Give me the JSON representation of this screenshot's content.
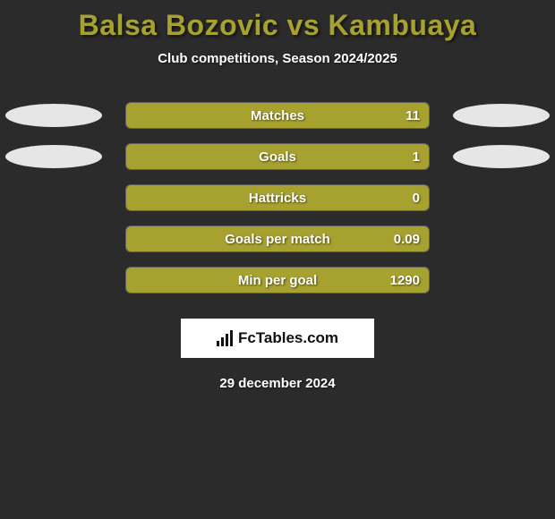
{
  "title": {
    "player1": "Balsa Bozovic",
    "vs": "vs",
    "player2": "Kambuaya",
    "color": "#a7a22f"
  },
  "subtitle": "Club competitions, Season 2024/2025",
  "background_color": "#2b2b2b",
  "stats": [
    {
      "label": "Matches",
      "value": "11",
      "fill_pct": 100,
      "fill_color": "#a7a22f",
      "show_ovals": true,
      "oval_left_color": "#e6e6e6",
      "oval_right_color": "#e6e6e6"
    },
    {
      "label": "Goals",
      "value": "1",
      "fill_pct": 100,
      "fill_color": "#a7a22f",
      "show_ovals": true,
      "oval_left_color": "#e6e6e6",
      "oval_right_color": "#e6e6e6"
    },
    {
      "label": "Hattricks",
      "value": "0",
      "fill_pct": 100,
      "fill_color": "#a7a22f",
      "show_ovals": false
    },
    {
      "label": "Goals per match",
      "value": "0.09",
      "fill_pct": 100,
      "fill_color": "#a7a22f",
      "show_ovals": false
    },
    {
      "label": "Min per goal",
      "value": "1290",
      "fill_pct": 100,
      "fill_color": "#a7a22f",
      "show_ovals": false
    }
  ],
  "bar": {
    "track_border_color": "rgba(255,255,255,0.25)",
    "text_color": "#ffffff"
  },
  "logo": {
    "text": "FcTables.com",
    "bg": "#ffffff",
    "fg": "#111111"
  },
  "date": "29 december 2024"
}
